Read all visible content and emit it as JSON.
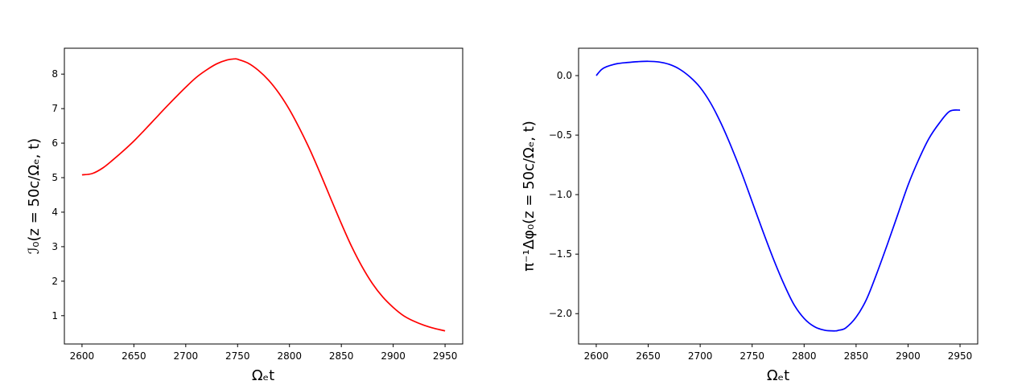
{
  "chart_data": [
    {
      "type": "line",
      "xlabel": "Ωₑt",
      "ylabel": "ℐ₀(z = 50c/Ωₑ, t)",
      "xlim": [
        2583,
        2967
      ],
      "ylim": [
        0.18,
        8.75
      ],
      "xticks": [
        2600,
        2650,
        2700,
        2750,
        2800,
        2850,
        2900,
        2950
      ],
      "xtick_labels": [
        "2600",
        "2650",
        "2700",
        "2750",
        "2800",
        "2850",
        "2900",
        "2950"
      ],
      "yticks": [
        1,
        2,
        3,
        4,
        5,
        6,
        7,
        8
      ],
      "ytick_labels": [
        "1",
        "2",
        "3",
        "4",
        "5",
        "6",
        "7",
        "8"
      ],
      "grid": false,
      "series": [
        {
          "color": "#ff0000",
          "x": [
            2600,
            2610,
            2620,
            2630,
            2640,
            2650,
            2660,
            2670,
            2680,
            2690,
            2700,
            2710,
            2720,
            2730,
            2740,
            2747,
            2750,
            2760,
            2770,
            2780,
            2790,
            2800,
            2810,
            2820,
            2830,
            2840,
            2850,
            2860,
            2870,
            2880,
            2890,
            2900,
            2910,
            2920,
            2930,
            2940,
            2950
          ],
          "y": [
            5.08,
            5.12,
            5.28,
            5.52,
            5.78,
            6.06,
            6.37,
            6.69,
            7.01,
            7.32,
            7.62,
            7.9,
            8.12,
            8.3,
            8.41,
            8.44,
            8.43,
            8.32,
            8.11,
            7.82,
            7.44,
            6.97,
            6.41,
            5.79,
            5.1,
            4.38,
            3.67,
            3.0,
            2.42,
            1.93,
            1.54,
            1.24,
            1.0,
            0.84,
            0.72,
            0.63,
            0.56
          ]
        }
      ]
    },
    {
      "type": "line",
      "xlabel": "Ωₑt",
      "ylabel": "π⁻¹Δφ₀(z = 50c/Ωₑ, t)",
      "xlim": [
        2583,
        2967
      ],
      "ylim": [
        -2.255,
        0.23
      ],
      "xticks": [
        2600,
        2650,
        2700,
        2750,
        2800,
        2850,
        2900,
        2950
      ],
      "xtick_labels": [
        "2600",
        "2650",
        "2700",
        "2750",
        "2800",
        "2850",
        "2900",
        "2950"
      ],
      "yticks": [
        0.0,
        -0.5,
        -1.0,
        -1.5,
        -2.0
      ],
      "ytick_labels": [
        "0.0",
        "−0.5",
        "−1.0",
        "−1.5",
        "−2.0"
      ],
      "grid": false,
      "series": [
        {
          "color": "#0000ff",
          "x": [
            2600,
            2605,
            2610,
            2620,
            2630,
            2640,
            2650,
            2660,
            2670,
            2680,
            2690,
            2700,
            2710,
            2720,
            2730,
            2740,
            2750,
            2760,
            2770,
            2780,
            2790,
            2800,
            2810,
            2820,
            2830,
            2833,
            2840,
            2850,
            2860,
            2870,
            2880,
            2890,
            2900,
            2910,
            2920,
            2930,
            2940,
            2950
          ],
          "y": [
            0.0,
            0.05,
            0.075,
            0.1,
            0.11,
            0.117,
            0.12,
            0.115,
            0.095,
            0.055,
            -0.01,
            -0.1,
            -0.23,
            -0.4,
            -0.6,
            -0.82,
            -1.06,
            -1.3,
            -1.53,
            -1.74,
            -1.92,
            -2.04,
            -2.11,
            -2.14,
            -2.145,
            -2.14,
            -2.12,
            -2.03,
            -1.88,
            -1.66,
            -1.42,
            -1.17,
            -0.92,
            -0.71,
            -0.53,
            -0.4,
            -0.3,
            -0.29
          ]
        }
      ]
    }
  ]
}
